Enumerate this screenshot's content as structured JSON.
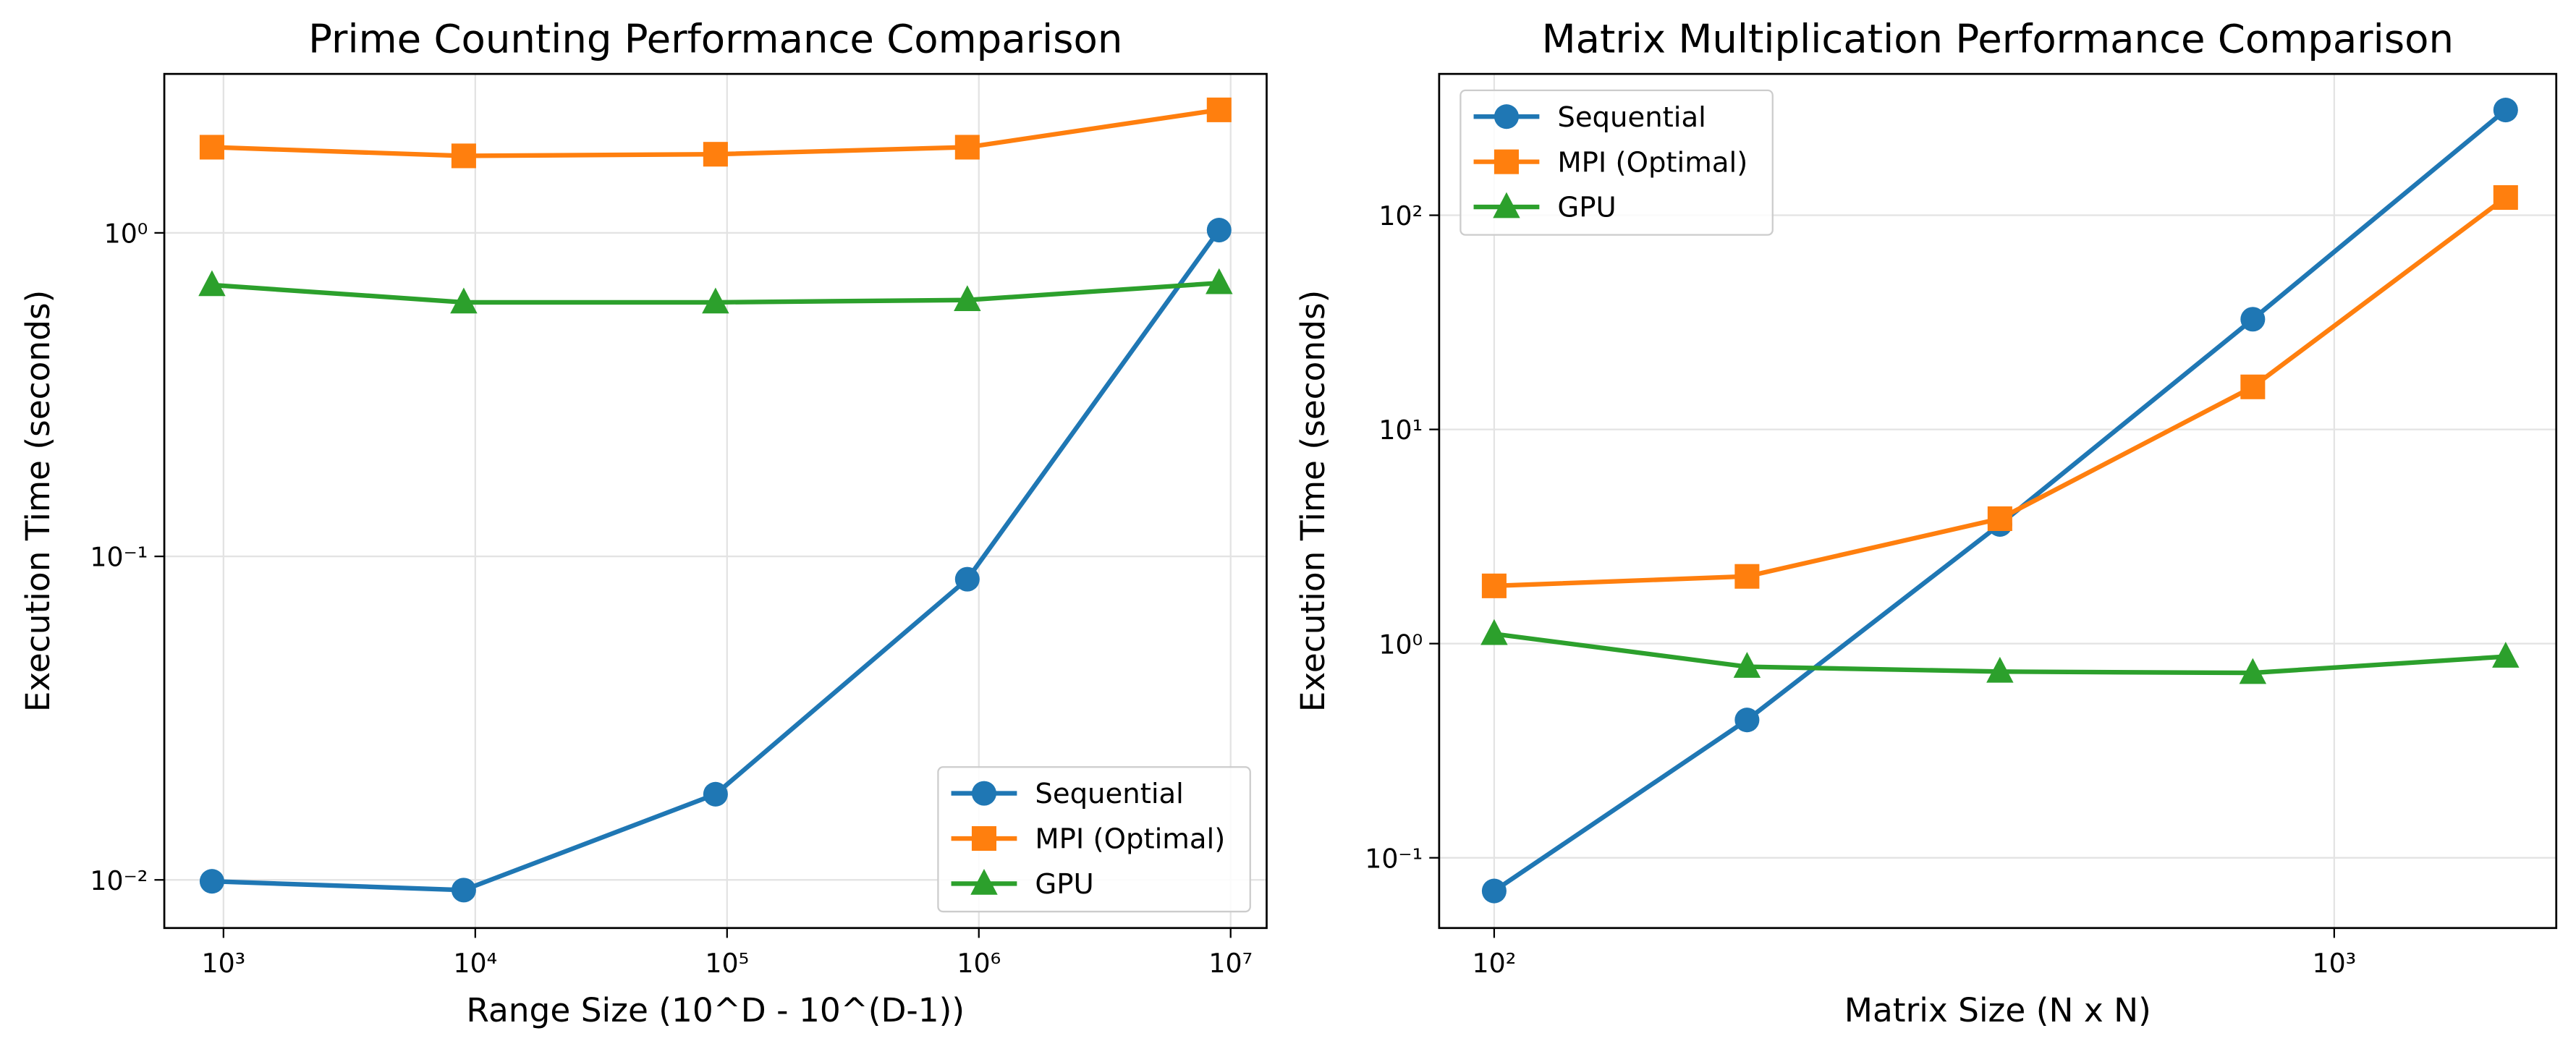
{
  "chart_data": [
    {
      "type": "line",
      "title": "Prime Counting Performance Comparison",
      "x_label": "Range Size (10^D - 10^(D-1))",
      "y_label": "Execution Time (seconds)",
      "x": [
        900,
        9000,
        90000,
        900000,
        9000000
      ],
      "series": [
        {
          "name": "Sequential",
          "color": "#1f77b4",
          "marker": "o",
          "values": [
            0.0099,
            0.0093,
            0.0184,
            0.085,
            1.02
          ]
        },
        {
          "name": "MPI (Optimal)",
          "color": "#ff7f0e",
          "marker": "s",
          "values": [
            1.84,
            1.73,
            1.75,
            1.84,
            2.4
          ]
        },
        {
          "name": "GPU",
          "color": "#2ca02c",
          "marker": "^",
          "values": [
            0.69,
            0.61,
            0.61,
            0.62,
            0.7
          ]
        }
      ],
      "x_log": true,
      "y_log": true,
      "xlim": [
        582,
        13900000
      ],
      "ylim": [
        0.0071,
        3.1
      ],
      "xticks": [
        {
          "value": 1000,
          "label": "10³"
        },
        {
          "value": 10000,
          "label": "10⁴"
        },
        {
          "value": 100000,
          "label": "10⁵"
        },
        {
          "value": 1000000,
          "label": "10⁶"
        },
        {
          "value": 10000000,
          "label": "10⁷"
        }
      ],
      "yticks": [
        {
          "value": 0.01,
          "label": "10⁻²"
        },
        {
          "value": 0.1,
          "label": "10⁻¹"
        },
        {
          "value": 1,
          "label": "10⁰"
        }
      ],
      "grid": true,
      "legend": "lower right"
    },
    {
      "type": "line",
      "title": "Matrix Multiplication Performance Comparison",
      "x_label": "Matrix Size (N x N)",
      "y_label": "Execution Time (seconds)",
      "x": [
        100,
        200,
        400,
        800,
        1600
      ],
      "series": [
        {
          "name": "Sequential",
          "color": "#1f77b4",
          "marker": "o",
          "values": [
            0.07,
            0.44,
            3.6,
            32.7,
            310
          ]
        },
        {
          "name": "MPI (Optimal)",
          "color": "#ff7f0e",
          "marker": "s",
          "values": [
            1.86,
            2.06,
            3.83,
            15.8,
            121
          ]
        },
        {
          "name": "GPU",
          "color": "#2ca02c",
          "marker": "^",
          "values": [
            1.11,
            0.78,
            0.74,
            0.73,
            0.87
          ]
        }
      ],
      "x_log": true,
      "y_log": true,
      "xlim": [
        86,
        1838
      ],
      "ylim": [
        0.047,
        457
      ],
      "xticks": [
        {
          "value": 100,
          "label": "10²"
        },
        {
          "value": 1000,
          "label": "10³"
        }
      ],
      "yticks": [
        {
          "value": 0.1,
          "label": "10⁻¹"
        },
        {
          "value": 1,
          "label": "10⁰"
        },
        {
          "value": 10,
          "label": "10¹"
        },
        {
          "value": 100,
          "label": "10²"
        }
      ],
      "grid": true,
      "legend": "upper left"
    }
  ]
}
